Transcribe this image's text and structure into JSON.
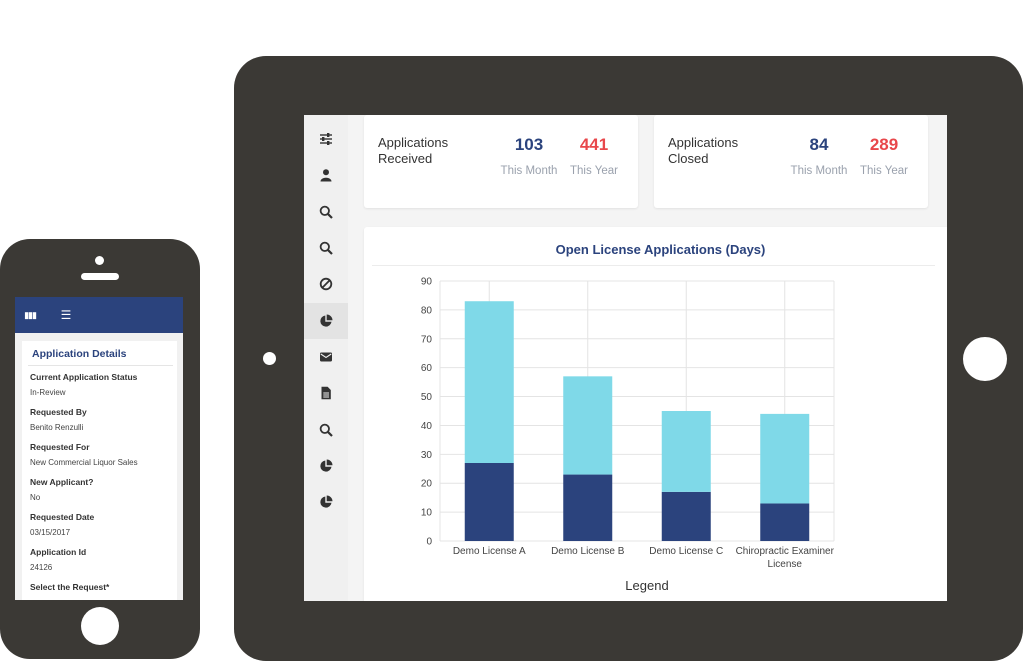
{
  "phone": {
    "card_title": "Application Details",
    "fields": [
      {
        "label": "Current Application Status",
        "value": "In-Review"
      },
      {
        "label": "Requested By",
        "value": "Benito Renzulli"
      },
      {
        "label": "Requested For",
        "value": "New Commercial Liquor Sales"
      },
      {
        "label": "New Applicant?",
        "value": "No"
      },
      {
        "label": "Requested Date",
        "value": "03/15/2017"
      },
      {
        "label": "Application Id",
        "value": "24126"
      },
      {
        "label": "Select the Request*",
        "value": ""
      }
    ]
  },
  "sidebar": {
    "icons": [
      "sliders-icon",
      "user-icon",
      "search-icon",
      "search-icon",
      "ban-icon",
      "pie-chart-icon",
      "envelope-icon",
      "document-icon",
      "search-icon",
      "pie-chart-icon",
      "pie-chart-icon"
    ],
    "active_index": 5
  },
  "stats": [
    {
      "label": "Applications Received",
      "month_value": "103",
      "month_caption": "This Month",
      "year_value": "441",
      "year_caption": "This Year"
    },
    {
      "label": "Applications Closed",
      "month_value": "84",
      "month_caption": "This Month",
      "year_value": "289",
      "year_caption": "This Year"
    }
  ],
  "colors": {
    "navy": "#2b437d",
    "light_blue": "#7fd9e8",
    "red": "#e8474b",
    "device": "#3b3935"
  },
  "chart_data": {
    "type": "bar",
    "stacked": true,
    "title": "Open License Applications (Days)",
    "legend_title": "Legend",
    "categories": [
      "Demo License A",
      "Demo License B",
      "Demo License C",
      "Chiropractic Examiner License"
    ],
    "category_lines": [
      [
        "Demo License A"
      ],
      [
        "Demo License B"
      ],
      [
        "Demo License C"
      ],
      [
        "Chiropractic Examiner",
        "License"
      ]
    ],
    "series": [
      {
        "values": [
          27,
          23,
          17,
          13
        ],
        "color": "#2b437d"
      },
      {
        "values": [
          56,
          34,
          28,
          31
        ],
        "color": "#7fd9e8"
      }
    ],
    "ylim": [
      0,
      90
    ],
    "yticks": [
      0,
      10,
      20,
      30,
      40,
      50,
      60,
      70,
      80,
      90
    ],
    "grid": true
  }
}
